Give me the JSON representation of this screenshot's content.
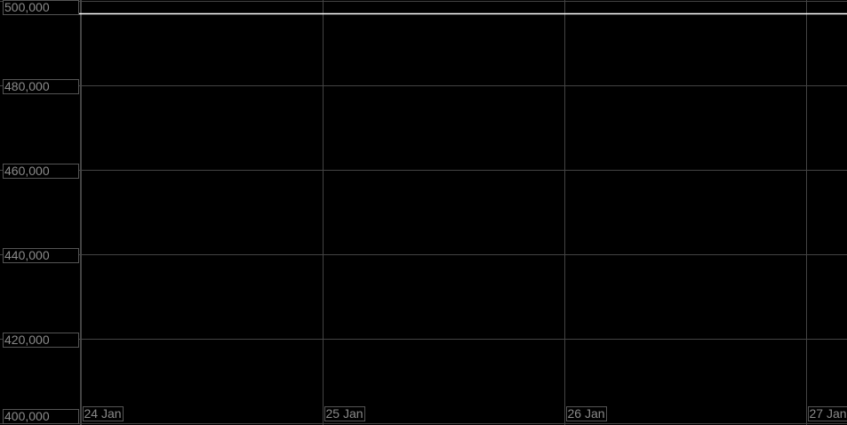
{
  "chart_data": {
    "type": "line",
    "title": "",
    "xlabel": "",
    "ylabel": "",
    "ylim": [
      400000,
      500000
    ],
    "y_ticks": [
      500000,
      480000,
      460000,
      440000,
      420000,
      400000
    ],
    "y_tick_labels": [
      "500,000",
      "480,000",
      "460,000",
      "440,000",
      "420,000",
      "400,000"
    ],
    "x_tick_labels": [
      "24 Jan",
      "25 Jan",
      "26 Jan",
      "27 Jan"
    ],
    "grid": true,
    "background": "#000000",
    "grid_color": "#444444",
    "series": [
      {
        "color": "#ffffff",
        "x": [
          "24 Jan",
          "27 Jan"
        ],
        "y": [
          497000,
          497000
        ]
      }
    ]
  }
}
